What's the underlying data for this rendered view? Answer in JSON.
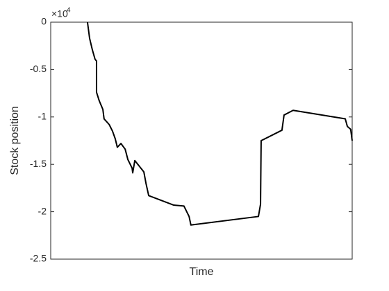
{
  "chart_data": {
    "type": "line",
    "x_label": "Time",
    "y_label": "Stock position",
    "y_multiplier_base": "×10",
    "y_multiplier_exponent": "4",
    "xlim": [
      0,
      100
    ],
    "ylim": [
      -2.5,
      0
    ],
    "yticks": [
      0,
      -0.5,
      -1,
      -1.5,
      -2,
      -2.5
    ],
    "x": [
      12.2,
      12.9,
      13.8,
      14.7,
      15.2,
      15.2,
      16.1,
      17.3,
      17.7,
      19.4,
      20.5,
      21.4,
      22.1,
      23.3,
      24.7,
      25.6,
      27.0,
      27.2,
      27.9,
      30.9,
      31.6,
      32.5,
      40.8,
      44.2,
      45.9,
      46.5,
      68.9,
      69.6,
      69.8,
      76.7,
      77.4,
      80.4,
      97.7,
      98.4,
      99.5,
      100
    ],
    "series": [
      {
        "color": "#000000",
        "values": [
          0,
          -0.17,
          -0.29,
          -0.39,
          -0.41,
          -0.74,
          -0.83,
          -0.92,
          -1.02,
          -1.08,
          -1.15,
          -1.23,
          -1.32,
          -1.28,
          -1.34,
          -1.45,
          -1.54,
          -1.59,
          -1.46,
          -1.58,
          -1.7,
          -1.83,
          -1.93,
          -1.94,
          -2.05,
          -2.14,
          -2.05,
          -1.92,
          -1.25,
          -1.14,
          -0.98,
          -0.93,
          -1.02,
          -1.1,
          -1.13,
          -1.25
        ]
      }
    ]
  }
}
